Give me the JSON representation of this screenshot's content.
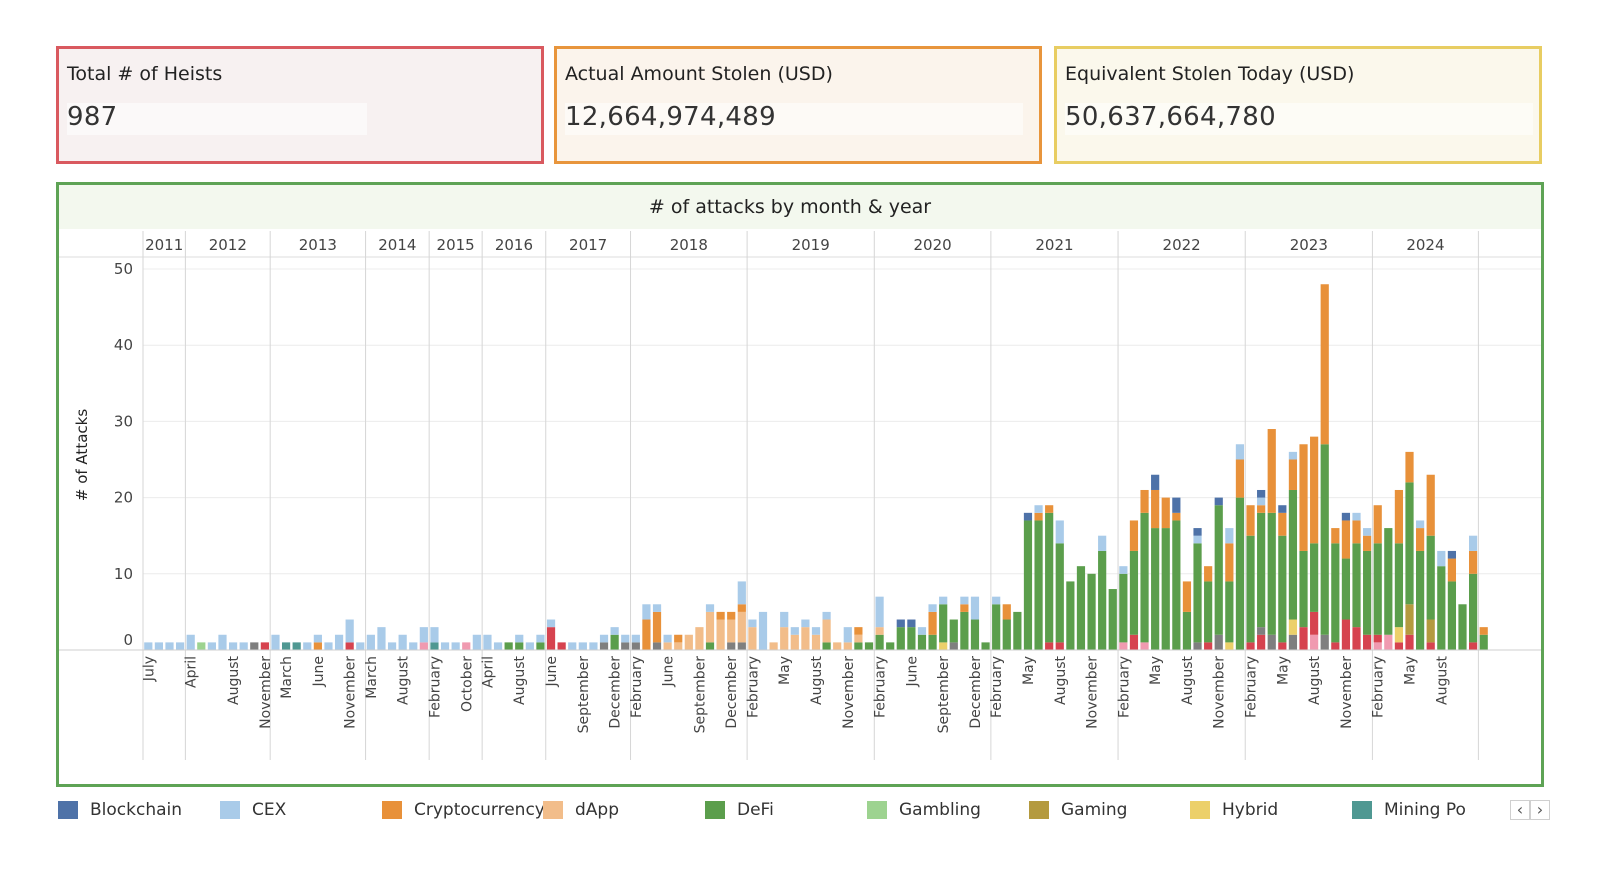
{
  "kpis": [
    {
      "label": "Total # of Heists",
      "value": "987"
    },
    {
      "label": "Actual Amount Stolen (USD)",
      "value": "12,664,974,489"
    },
    {
      "label": "Equivalent Stolen Today (USD)",
      "value": "50,637,664,780"
    }
  ],
  "colors": {
    "kpi1_border": "#d9595f",
    "kpi2_border": "#e8953c",
    "kpi3_border": "#e8cd62",
    "chart_border": "#5ea355",
    "Blockchain": "#4e72a8",
    "CEX": "#a9cbe9",
    "Cryptocurrency": "#e8913a",
    "dApp": "#f2bd8a",
    "DeFi": "#5b9e4c",
    "Gambling": "#9dd390",
    "Gaming": "#b49a3f",
    "Hybrid": "#ecd06a",
    "Mining Pool": "#4f9892",
    "Other": "#d6434f",
    "Other2": "#f09ab0",
    "Other3": "#7f7f7f"
  },
  "legend": [
    "Blockchain",
    "CEX",
    "Cryptocurrency",
    "dApp",
    "DeFi",
    "Gambling",
    "Gaming",
    "Hybrid",
    "Mining Po"
  ],
  "legend_nav": {
    "prev": "‹",
    "next": "›"
  },
  "chart_data": {
    "type": "bar",
    "stacked": true,
    "title": "# of attacks by month & year",
    "ylabel": "# of Attacks",
    "xlabel": "",
    "ylim": [
      0,
      50
    ],
    "yticks": [
      0,
      10,
      20,
      30,
      40,
      50
    ],
    "grid": true,
    "legend_position": "bottom",
    "years": [
      {
        "label": "2011",
        "count": 4
      },
      {
        "label": "2012",
        "count": 8
      },
      {
        "label": "2013",
        "count": 9
      },
      {
        "label": "2014",
        "count": 6
      },
      {
        "label": "2015",
        "count": 5
      },
      {
        "label": "2016",
        "count": 6
      },
      {
        "label": "2017",
        "count": 8
      },
      {
        "label": "2018",
        "count": 11
      },
      {
        "label": "2019",
        "count": 12
      },
      {
        "label": "2020",
        "count": 11
      },
      {
        "label": "2021",
        "count": 12
      },
      {
        "label": "2022",
        "count": 12
      },
      {
        "label": "2023",
        "count": 12
      },
      {
        "label": "2024",
        "count": 10
      }
    ],
    "month_labels": [
      {
        "i": 0,
        "t": "July"
      },
      {
        "i": 4,
        "t": "April"
      },
      {
        "i": 8,
        "t": "August"
      },
      {
        "i": 11,
        "t": "November"
      },
      {
        "i": 13,
        "t": "March"
      },
      {
        "i": 16,
        "t": "June"
      },
      {
        "i": 19,
        "t": "November"
      },
      {
        "i": 21,
        "t": "March"
      },
      {
        "i": 24,
        "t": "August"
      },
      {
        "i": 27,
        "t": "February"
      },
      {
        "i": 30,
        "t": "October"
      },
      {
        "i": 32,
        "t": "April"
      },
      {
        "i": 35,
        "t": "August"
      },
      {
        "i": 38,
        "t": "June"
      },
      {
        "i": 41,
        "t": "September"
      },
      {
        "i": 44,
        "t": "December"
      },
      {
        "i": 46,
        "t": "February"
      },
      {
        "i": 49,
        "t": "June"
      },
      {
        "i": 52,
        "t": "September"
      },
      {
        "i": 55,
        "t": "December"
      },
      {
        "i": 57,
        "t": "February"
      },
      {
        "i": 60,
        "t": "May"
      },
      {
        "i": 63,
        "t": "August"
      },
      {
        "i": 66,
        "t": "November"
      },
      {
        "i": 69,
        "t": "February"
      },
      {
        "i": 72,
        "t": "June"
      },
      {
        "i": 75,
        "t": "September"
      },
      {
        "i": 78,
        "t": "December"
      },
      {
        "i": 80,
        "t": "February"
      },
      {
        "i": 83,
        "t": "May"
      },
      {
        "i": 86,
        "t": "August"
      },
      {
        "i": 89,
        "t": "November"
      },
      {
        "i": 92,
        "t": "February"
      },
      {
        "i": 95,
        "t": "May"
      },
      {
        "i": 98,
        "t": "August"
      },
      {
        "i": 101,
        "t": "November"
      },
      {
        "i": 104,
        "t": "February"
      },
      {
        "i": 107,
        "t": "May"
      },
      {
        "i": 110,
        "t": "August"
      },
      {
        "i": 113,
        "t": "November"
      },
      {
        "i": 116,
        "t": "February"
      },
      {
        "i": 119,
        "t": "May"
      },
      {
        "i": 122,
        "t": "August"
      }
    ],
    "series_order": [
      "Other2",
      "Other",
      "Other3",
      "Gaming",
      "Hybrid",
      "Gambling",
      "Mining Pool",
      "DeFi",
      "dApp",
      "Cryptocurrency",
      "CEX",
      "Blockchain"
    ],
    "bars": [
      {
        "CEX": 1
      },
      {
        "CEX": 1
      },
      {
        "CEX": 1
      },
      {
        "CEX": 1
      },
      {
        "CEX": 2
      },
      {
        "Gambling": 1
      },
      {
        "CEX": 1
      },
      {
        "CEX": 2
      },
      {
        "CEX": 1
      },
      {
        "CEX": 1
      },
      {
        "Other3": 1
      },
      {
        "Other": 1
      },
      {
        "CEX": 2
      },
      {
        "Mining Pool": 1
      },
      {
        "Mining Pool": 1
      },
      {
        "CEX": 1
      },
      {
        "CEX": 1,
        "Cryptocurrency": 1
      },
      {
        "CEX": 1
      },
      {
        "CEX": 2
      },
      {
        "Other": 1,
        "CEX": 3
      },
      {
        "CEX": 1
      },
      {
        "CEX": 2
      },
      {
        "CEX": 3
      },
      {
        "CEX": 1
      },
      {
        "CEX": 2
      },
      {
        "CEX": 1
      },
      {
        "Other2": 1,
        "CEX": 2
      },
      {
        "Mining Pool": 1,
        "CEX": 2
      },
      {
        "CEX": 1
      },
      {
        "CEX": 1
      },
      {
        "Other2": 1
      },
      {
        "CEX": 2
      },
      {
        "CEX": 2
      },
      {
        "CEX": 1
      },
      {
        "DeFi": 1
      },
      {
        "DeFi": 1,
        "CEX": 1
      },
      {
        "CEX": 1
      },
      {
        "DeFi": 1,
        "CEX": 1
      },
      {
        "Other": 3,
        "CEX": 1
      },
      {
        "Other": 1
      },
      {
        "CEX": 1
      },
      {
        "CEX": 1
      },
      {
        "CEX": 1
      },
      {
        "Other3": 1,
        "CEX": 1
      },
      {
        "DeFi": 2,
        "CEX": 1
      },
      {
        "Other3": 1,
        "CEX": 1
      },
      {
        "Other3": 1,
        "CEX": 1
      },
      {
        "Cryptocurrency": 4,
        "CEX": 2
      },
      {
        "Other3": 1,
        "Cryptocurrency": 4,
        "CEX": 1
      },
      {
        "CEX": 1,
        "dApp": 1
      },
      {
        "Cryptocurrency": 1,
        "dApp": 1
      },
      {
        "dApp": 2
      },
      {
        "dApp": 3
      },
      {
        "DeFi": 1,
        "dApp": 4,
        "CEX": 1
      },
      {
        "dApp": 4,
        "Cryptocurrency": 1
      },
      {
        "Other3": 1,
        "dApp": 3,
        "Cryptocurrency": 1
      },
      {
        "Other3": 1,
        "dApp": 4,
        "Cryptocurrency": 1,
        "CEX": 3
      },
      {
        "dApp": 3,
        "CEX": 1
      },
      {
        "CEX": 5
      },
      {
        "dApp": 1
      },
      {
        "dApp": 3,
        "CEX": 2
      },
      {
        "dApp": 2,
        "CEX": 1
      },
      {
        "dApp": 3,
        "CEX": 1
      },
      {
        "dApp": 2,
        "CEX": 1
      },
      {
        "DeFi": 1,
        "dApp": 3,
        "CEX": 1
      },
      {
        "dApp": 1
      },
      {
        "dApp": 1,
        "CEX": 2
      },
      {
        "DeFi": 1,
        "Cryptocurrency": 1,
        "dApp": 1
      },
      {
        "DeFi": 1
      },
      {
        "DeFi": 2,
        "dApp": 1,
        "CEX": 4
      },
      {
        "DeFi": 1
      },
      {
        "DeFi": 3,
        "Blockchain": 1
      },
      {
        "DeFi": 3,
        "Blockchain": 1
      },
      {
        "DeFi": 2,
        "CEX": 1
      },
      {
        "DeFi": 2,
        "Cryptocurrency": 3,
        "CEX": 1
      },
      {
        "Hybrid": 1,
        "DeFi": 5,
        "CEX": 1
      },
      {
        "Other3": 1,
        "DeFi": 3
      },
      {
        "DeFi": 5,
        "Cryptocurrency": 1,
        "CEX": 1
      },
      {
        "DeFi": 4,
        "CEX": 3
      },
      {
        "DeFi": 1
      },
      {
        "DeFi": 6,
        "CEX": 1
      },
      {
        "DeFi": 4,
        "Cryptocurrency": 2
      },
      {
        "DeFi": 5
      },
      {
        "DeFi": 17,
        "Blockchain": 1
      },
      {
        "DeFi": 17,
        "Cryptocurrency": 1,
        "CEX": 1
      },
      {
        "Other": 1,
        "DeFi": 17,
        "Cryptocurrency": 1
      },
      {
        "Other": 1,
        "DeFi": 13,
        "CEX": 3
      },
      {
        "DeFi": 9
      },
      {
        "DeFi": 11
      },
      {
        "DeFi": 10
      },
      {
        "DeFi": 13,
        "CEX": 2
      },
      {
        "DeFi": 8
      },
      {
        "Other2": 1,
        "DeFi": 9,
        "CEX": 1
      },
      {
        "Other": 2,
        "DeFi": 11,
        "Cryptocurrency": 4
      },
      {
        "Other2": 1,
        "DeFi": 17,
        "Cryptocurrency": 3
      },
      {
        "DeFi": 16,
        "Cryptocurrency": 5,
        "Blockchain": 2
      },
      {
        "DeFi": 16,
        "Cryptocurrency": 4
      },
      {
        "DeFi": 17,
        "Cryptocurrency": 1,
        "Blockchain": 2
      },
      {
        "DeFi": 5,
        "Cryptocurrency": 4
      },
      {
        "Other3": 1,
        "DeFi": 13,
        "CEX": 1,
        "Blockchain": 1
      },
      {
        "Other": 1,
        "DeFi": 8,
        "Cryptocurrency": 2
      },
      {
        "Other3": 2,
        "DeFi": 17,
        "Blockchain": 1
      },
      {
        "DeFi": 8,
        "Cryptocurrency": 5,
        "Hybrid": 1,
        "CEX": 2
      },
      {
        "DeFi": 20,
        "Cryptocurrency": 5,
        "CEX": 2
      },
      {
        "Other": 1,
        "DeFi": 14,
        "Cryptocurrency": 4
      },
      {
        "Other3": 1,
        "Other": 2,
        "DeFi": 15,
        "Cryptocurrency": 1,
        "CEX": 1,
        "Blockchain": 1
      },
      {
        "Other3": 2,
        "DeFi": 16,
        "Cryptocurrency": 11
      },
      {
        "Other": 1,
        "DeFi": 14,
        "Cryptocurrency": 3,
        "Blockchain": 1
      },
      {
        "Other3": 2,
        "Hybrid": 2,
        "DeFi": 17,
        "Cryptocurrency": 4,
        "CEX": 1
      },
      {
        "Other": 3,
        "DeFi": 10,
        "Cryptocurrency": 14
      },
      {
        "Other2": 2,
        "Other": 3,
        "DeFi": 9,
        "Cryptocurrency": 14
      },
      {
        "Other3": 2,
        "DeFi": 25,
        "Cryptocurrency": 21
      },
      {
        "Other": 1,
        "DeFi": 13,
        "Cryptocurrency": 2
      },
      {
        "Other": 4,
        "DeFi": 8,
        "Cryptocurrency": 5,
        "Blockchain": 1
      },
      {
        "Other": 3,
        "DeFi": 11,
        "Cryptocurrency": 3,
        "CEX": 1
      },
      {
        "Other": 2,
        "DeFi": 11,
        "Cryptocurrency": 2,
        "CEX": 1
      },
      {
        "Other2": 1,
        "Other": 1,
        "DeFi": 12,
        "Cryptocurrency": 5
      },
      {
        "Other2": 2,
        "DeFi": 14
      },
      {
        "Other": 1,
        "Hybrid": 2,
        "DeFi": 11,
        "Cryptocurrency": 7
      },
      {
        "Other": 2,
        "Gaming": 4,
        "DeFi": 16,
        "Cryptocurrency": 4
      },
      {
        "DeFi": 13,
        "Cryptocurrency": 3,
        "CEX": 1
      },
      {
        "Other": 1,
        "Gaming": 3,
        "DeFi": 11,
        "Cryptocurrency": 8
      },
      {
        "DeFi": 11,
        "CEX": 2
      },
      {
        "DeFi": 9,
        "Cryptocurrency": 3,
        "Blockchain": 1
      },
      {
        "DeFi": 6
      },
      {
        "Other": 1,
        "DeFi": 9,
        "Cryptocurrency": 3,
        "CEX": 2
      },
      {
        "DeFi": 2,
        "Cryptocurrency": 1
      }
    ]
  }
}
